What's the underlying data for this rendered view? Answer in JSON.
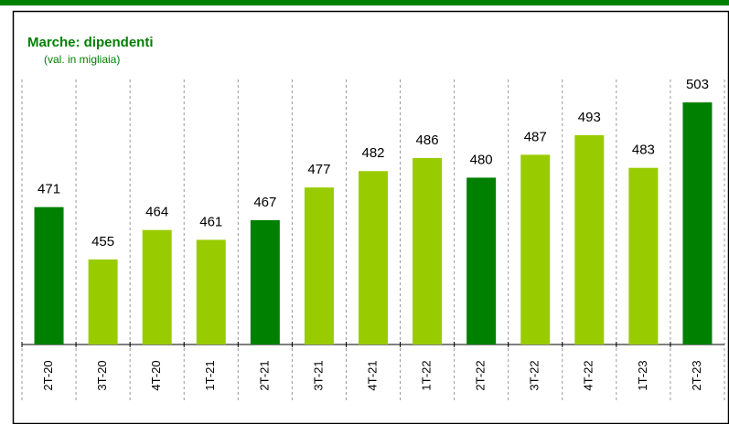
{
  "chart_data": {
    "type": "bar",
    "title": "Marche: dipendenti",
    "subtitle": "(val. in migliaia)",
    "categories": [
      "2T-20",
      "3T-20",
      "4T-20",
      "1T-21",
      "2T-21",
      "3T-21",
      "4T-21",
      "1T-22",
      "2T-22",
      "3T-22",
      "4T-22",
      "1T-23",
      "2T-23"
    ],
    "values": [
      471,
      455,
      464,
      461,
      467,
      477,
      482,
      486,
      480,
      487,
      493,
      483,
      503
    ],
    "colors": [
      "#008000",
      "#99cc00",
      "#99cc00",
      "#99cc00",
      "#008000",
      "#99cc00",
      "#99cc00",
      "#99cc00",
      "#008000",
      "#99cc00",
      "#99cc00",
      "#99cc00",
      "#008000"
    ],
    "ylim": [
      429,
      510
    ]
  }
}
